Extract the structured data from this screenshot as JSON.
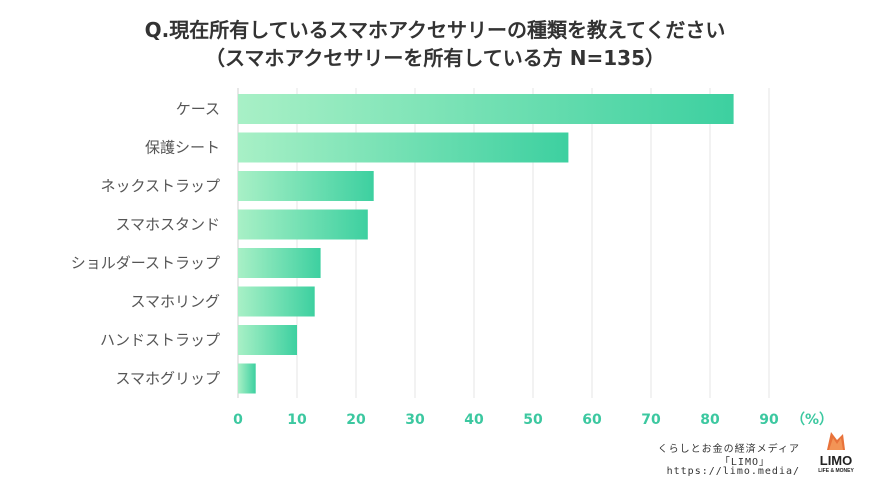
{
  "header": {
    "title_line1": "Q.現在所有しているスマホアクセサリーの種類を教えてください",
    "title_line2": "（スマホアクセサリーを所有している方 N=135）"
  },
  "chart_data": {
    "type": "bar",
    "orientation": "horizontal",
    "title": "Q.現在所有しているスマホアクセサリーの種類を教えてください（スマホアクセサリーを所有している方 N=135）",
    "categories": [
      "ケース",
      "保護シート",
      "ネックストラップ",
      "スマホスタンド",
      "ショルダーストラップ",
      "スマホリング",
      "ハンドストラップ",
      "スマホグリップ"
    ],
    "values": [
      84,
      56,
      23,
      22,
      14,
      13,
      10,
      3
    ],
    "xlabel": "（%）",
    "ylabel": "",
    "xlim": [
      0,
      90
    ],
    "xticks": [
      0,
      10,
      20,
      30,
      40,
      50,
      60,
      70,
      80,
      90
    ],
    "grid": true,
    "bar_color_start": "#a8f0c6",
    "bar_color_end": "#3dd0a0",
    "tick_color": "#3cc8a0"
  },
  "footer": {
    "line1": "くらしとお金の経済メディア",
    "line2": "「LIMO」",
    "line3": "https://limo.media/",
    "logo_text": "LIMO",
    "logo_sub": "LIFE & MONEY"
  }
}
